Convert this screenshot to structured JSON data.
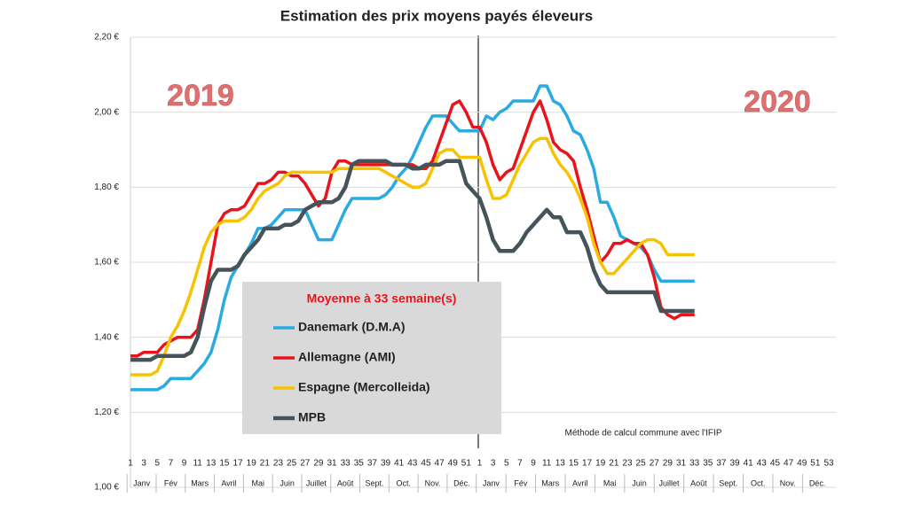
{
  "chart_data": {
    "type": "line",
    "title": "Estimation des prix moyens payés éleveurs",
    "year_labels": [
      "2019",
      "2020"
    ],
    "legend_title": "Moyenne à  33 semaine(s)",
    "note": "Méthode de calcul commune avec l'IFIP",
    "categories": [
      "1",
      null,
      "3",
      null,
      "5",
      null,
      "7",
      null,
      "9",
      null,
      "11",
      null,
      "13",
      null,
      "15",
      null,
      "17",
      null,
      "19",
      null,
      "21",
      null,
      "23",
      null,
      "25",
      null,
      "27",
      null,
      "29",
      null,
      "31",
      null,
      "33",
      null,
      "35",
      null,
      "37",
      null,
      "39",
      null,
      "41",
      null,
      "43",
      null,
      "45",
      null,
      "47",
      null,
      "49",
      null,
      "51",
      null,
      "1",
      null,
      "3",
      null,
      "5",
      null,
      "7",
      null,
      "9",
      null,
      "11",
      null,
      "13",
      null,
      "15",
      null,
      "17",
      null,
      "19",
      null,
      "21",
      null,
      "23",
      null,
      "25",
      null,
      "27",
      null,
      "29",
      null,
      "31",
      null,
      "33",
      null,
      "35",
      null,
      "37",
      null,
      "39",
      null,
      "41",
      null,
      "43",
      null,
      "45",
      null,
      "47",
      null,
      "49",
      null,
      "51",
      null,
      "53"
    ],
    "months": [
      [
        "Janv",
        "Fév",
        "Mars",
        "Avril",
        "Mai",
        "Juin",
        "Juillet",
        "Août",
        "Sept.",
        "Oct.",
        "Nov.",
        "Déc."
      ],
      [
        "Janv",
        "Fév",
        "Mars",
        "Avril",
        "Mai",
        "Juin",
        "Juillet",
        "Août",
        "Sept.",
        "Oct.",
        "Nov.",
        "Déc."
      ]
    ],
    "ylim": [
      1.0,
      2.2
    ],
    "yticks": [
      {
        "value": 1.0,
        "label": "1,00 €"
      },
      {
        "value": 1.2,
        "label": "1,20 €"
      },
      {
        "value": 1.4,
        "label": "1,40 €"
      },
      {
        "value": 1.6,
        "label": "1,60 €"
      },
      {
        "value": 1.8,
        "label": "1,80 €"
      },
      {
        "value": 2.0,
        "label": "2,00 €"
      },
      {
        "value": 2.2,
        "label": "2,20 €"
      }
    ],
    "grid": true,
    "series": [
      {
        "name": "Danemark (D.M.A)",
        "color": "#29abe2",
        "values": [
          1.26,
          1.26,
          1.26,
          1.26,
          1.26,
          1.27,
          1.29,
          1.29,
          1.29,
          1.29,
          1.31,
          1.33,
          1.36,
          1.42,
          1.5,
          1.56,
          1.59,
          1.62,
          1.65,
          1.69,
          1.69,
          1.7,
          1.72,
          1.74,
          1.74,
          1.74,
          1.74,
          1.7,
          1.66,
          1.66,
          1.66,
          1.7,
          1.74,
          1.77,
          1.77,
          1.77,
          1.77,
          1.77,
          1.78,
          1.8,
          1.83,
          1.85,
          1.88,
          1.92,
          1.96,
          1.99,
          1.99,
          1.99,
          1.97,
          1.95,
          1.95,
          1.95,
          1.95,
          1.99,
          1.98,
          2.0,
          2.01,
          2.03,
          2.03,
          2.03,
          2.03,
          2.07,
          2.07,
          2.03,
          2.02,
          1.99,
          1.95,
          1.94,
          1.9,
          1.85,
          1.76,
          1.76,
          1.72,
          1.67,
          1.66,
          1.65,
          1.64,
          1.62,
          1.58,
          1.55,
          1.55,
          1.55,
          1.55,
          1.55,
          1.55,
          null,
          null,
          null,
          null,
          null,
          null,
          null,
          null,
          null,
          null,
          null,
          null,
          null,
          null,
          null,
          null,
          null,
          null,
          null,
          null
        ]
      },
      {
        "name": "Allemagne (AMI)",
        "color": "#e8141c",
        "values": [
          1.35,
          1.35,
          1.36,
          1.36,
          1.36,
          1.38,
          1.39,
          1.4,
          1.4,
          1.4,
          1.42,
          1.5,
          1.6,
          1.7,
          1.73,
          1.74,
          1.74,
          1.75,
          1.78,
          1.81,
          1.81,
          1.82,
          1.84,
          1.84,
          1.83,
          1.83,
          1.81,
          1.78,
          1.75,
          1.77,
          1.84,
          1.87,
          1.87,
          1.86,
          1.86,
          1.86,
          1.86,
          1.86,
          1.86,
          1.86,
          1.86,
          1.86,
          1.86,
          1.85,
          1.85,
          1.87,
          1.92,
          1.97,
          2.02,
          2.03,
          2.0,
          1.96,
          1.96,
          1.92,
          1.86,
          1.82,
          1.84,
          1.85,
          1.9,
          1.95,
          2.0,
          2.03,
          1.98,
          1.92,
          1.9,
          1.89,
          1.87,
          1.8,
          1.74,
          1.67,
          1.6,
          1.62,
          1.65,
          1.65,
          1.66,
          1.65,
          1.65,
          1.62,
          1.56,
          1.48,
          1.46,
          1.45,
          1.46,
          1.46,
          1.46,
          null,
          null,
          null,
          null,
          null,
          null,
          null,
          null,
          null,
          null,
          null,
          null,
          null,
          null,
          null,
          null,
          null,
          null,
          null,
          null
        ]
      },
      {
        "name": "Espagne (Mercolleida)",
        "color": "#f7c300",
        "values": [
          1.3,
          1.3,
          1.3,
          1.3,
          1.31,
          1.35,
          1.4,
          1.43,
          1.47,
          1.52,
          1.58,
          1.64,
          1.68,
          1.7,
          1.71,
          1.71,
          1.71,
          1.72,
          1.74,
          1.77,
          1.79,
          1.8,
          1.81,
          1.83,
          1.84,
          1.84,
          1.84,
          1.84,
          1.84,
          1.84,
          1.84,
          1.85,
          1.85,
          1.85,
          1.85,
          1.85,
          1.85,
          1.85,
          1.84,
          1.83,
          1.82,
          1.81,
          1.8,
          1.8,
          1.81,
          1.85,
          1.89,
          1.9,
          1.9,
          1.88,
          1.88,
          1.88,
          1.88,
          1.82,
          1.77,
          1.77,
          1.78,
          1.82,
          1.86,
          1.89,
          1.92,
          1.93,
          1.93,
          1.89,
          1.86,
          1.84,
          1.81,
          1.77,
          1.72,
          1.65,
          1.6,
          1.57,
          1.57,
          1.59,
          1.61,
          1.63,
          1.65,
          1.66,
          1.66,
          1.65,
          1.62,
          1.62,
          1.62,
          1.62,
          1.62,
          null,
          null,
          null,
          null,
          null,
          null,
          null,
          null,
          null,
          null,
          null,
          null,
          null,
          null,
          null,
          null,
          null,
          null,
          null,
          null
        ]
      },
      {
        "name": "MPB",
        "color": "#44545a",
        "values": [
          1.34,
          1.34,
          1.34,
          1.34,
          1.35,
          1.35,
          1.35,
          1.35,
          1.35,
          1.36,
          1.4,
          1.48,
          1.55,
          1.58,
          1.58,
          1.58,
          1.59,
          1.62,
          1.64,
          1.66,
          1.69,
          1.69,
          1.69,
          1.7,
          1.7,
          1.71,
          1.74,
          1.75,
          1.76,
          1.76,
          1.76,
          1.77,
          1.8,
          1.86,
          1.87,
          1.87,
          1.87,
          1.87,
          1.87,
          1.86,
          1.86,
          1.86,
          1.85,
          1.85,
          1.86,
          1.86,
          1.86,
          1.87,
          1.87,
          1.87,
          1.81,
          1.79,
          1.77,
          1.72,
          1.66,
          1.63,
          1.63,
          1.63,
          1.65,
          1.68,
          1.7,
          1.72,
          1.74,
          1.72,
          1.72,
          1.68,
          1.68,
          1.68,
          1.64,
          1.58,
          1.54,
          1.52,
          1.52,
          1.52,
          1.52,
          1.52,
          1.52,
          1.52,
          1.52,
          1.47,
          1.47,
          1.47,
          1.47,
          1.47,
          1.47,
          null,
          null,
          null,
          null,
          null,
          null,
          null,
          null,
          null,
          null,
          null,
          null,
          null,
          null,
          null,
          null,
          null,
          null,
          null,
          null
        ]
      }
    ]
  }
}
